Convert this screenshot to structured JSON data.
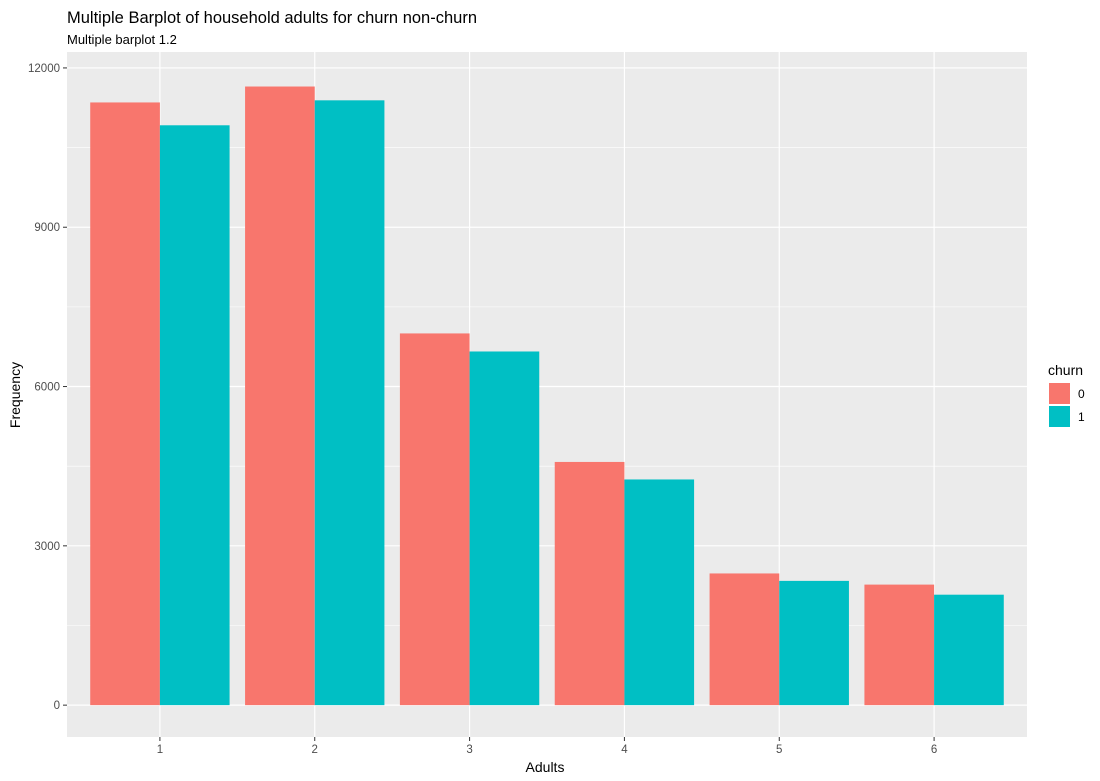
{
  "chart_data": {
    "type": "bar",
    "title": "Multiple Barplot of household adults for churn non-churn",
    "subtitle": "Multiple barplot 1.2",
    "xlabel": "Adults",
    "ylabel": "Frequency",
    "categories": [
      "1",
      "2",
      "3",
      "4",
      "5",
      "6"
    ],
    "series": [
      {
        "name": "0",
        "color": "#F8766D",
        "values": [
          11350,
          11650,
          7000,
          4580,
          2480,
          2270
        ]
      },
      {
        "name": "1",
        "color": "#00BFC4",
        "values": [
          10920,
          11390,
          6660,
          4250,
          2340,
          2080
        ]
      }
    ],
    "ylim": [
      -600,
      12300
    ],
    "yticks": [
      0,
      3000,
      6000,
      9000,
      12000
    ],
    "ytick_labels": [
      "0",
      "3000",
      "6000",
      "9000",
      "12000"
    ],
    "grid": true,
    "legend": {
      "title": "churn",
      "position": "right"
    },
    "panel_background": "#EBEBEB",
    "grid_color": "#FFFFFF"
  }
}
